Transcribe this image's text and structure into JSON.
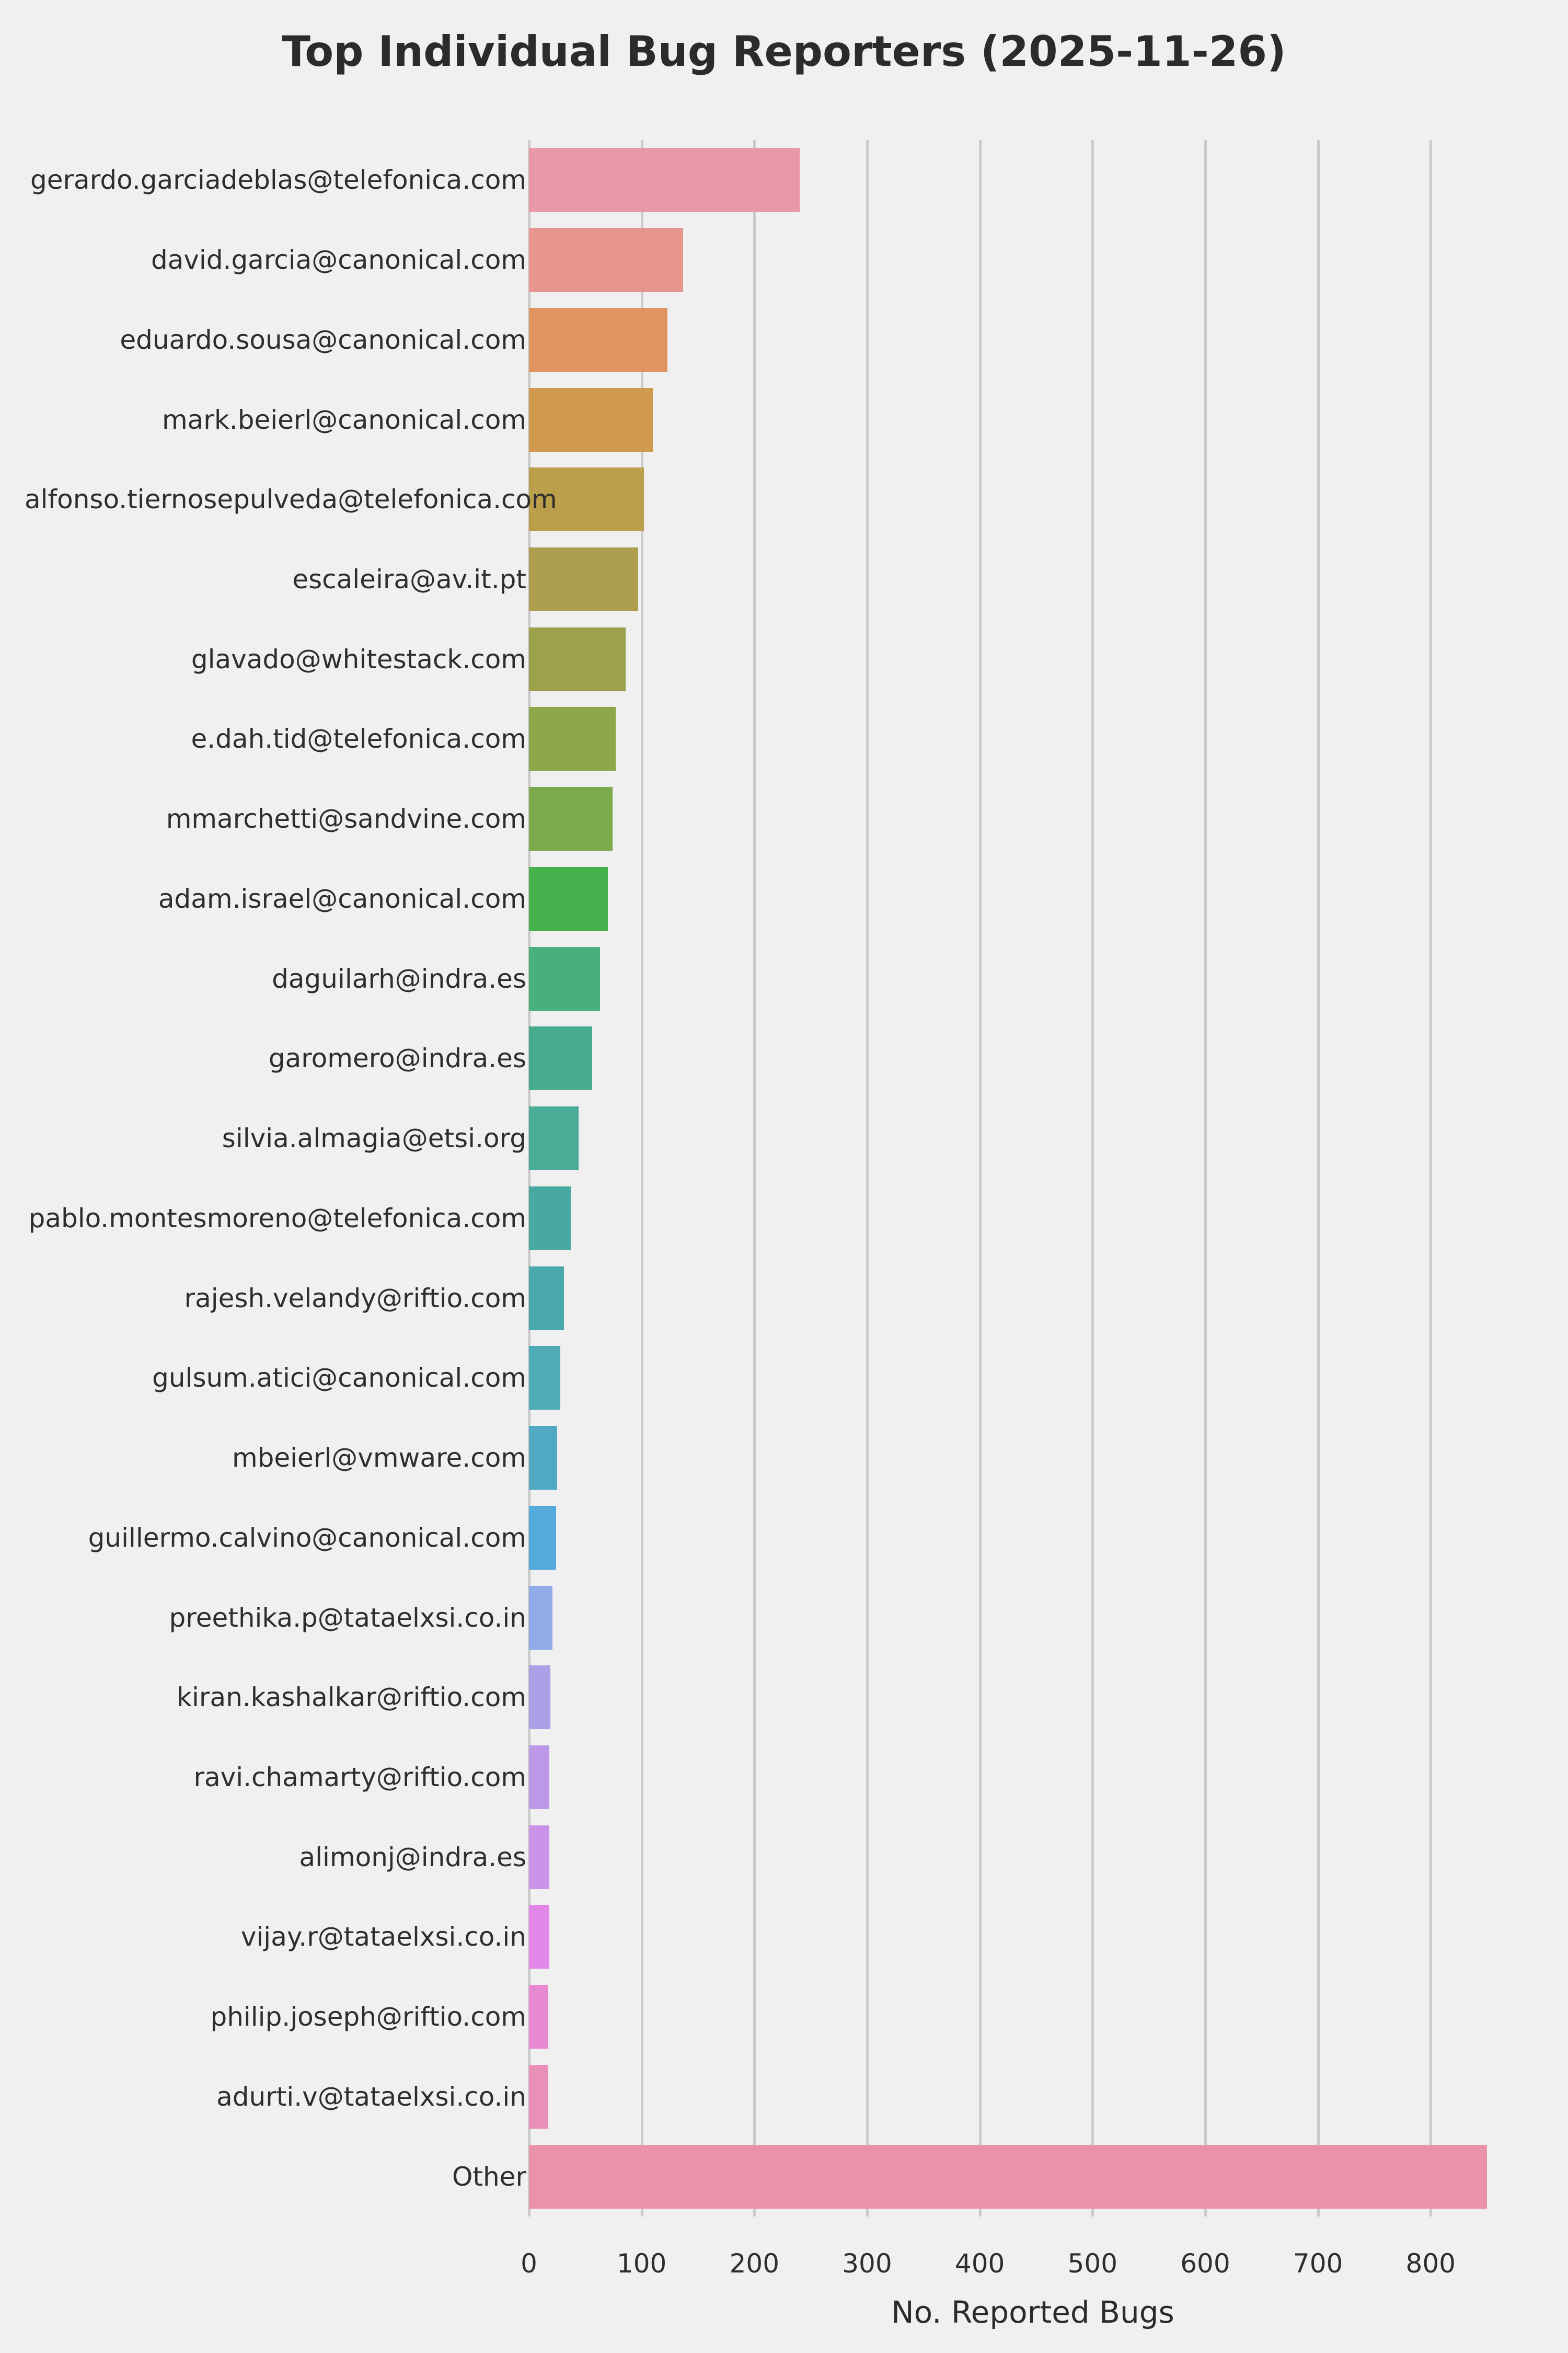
{
  "title": "Top Individual Bug Reporters (2025-11-26)",
  "colors": {
    "background": "#f0f0f0",
    "grid": "#cbcbcb",
    "text": "#2b2b2b"
  },
  "chart_data": {
    "type": "bar",
    "orientation": "horizontal",
    "title": "Top Individual Bug Reporters (2025-11-26)",
    "xlabel": "No. Reported Bugs",
    "ylabel": "",
    "grid": true,
    "legend": false,
    "xlim": [
      0,
      894
    ],
    "x_ticks": [
      0,
      100,
      200,
      300,
      400,
      500,
      600,
      700,
      800
    ],
    "categories": [
      "gerardo.garciadeblas@telefonica.com",
      "david.garcia@canonical.com",
      "eduardo.sousa@canonical.com",
      "mark.beierl@canonical.com",
      "alfonso.tiernosepulveda@telefonica.com",
      "escaleira@av.it.pt",
      "glavado@whitestack.com",
      "e.dah.tid@telefonica.com",
      "mmarchetti@sandvine.com",
      "adam.israel@canonical.com",
      "daguilarh@indra.es",
      "garomero@indra.es",
      "silvia.almagia@etsi.org",
      "pablo.montesmoreno@telefonica.com",
      "rajesh.velandy@riftio.com",
      "gulsum.atici@canonical.com",
      "mbeierl@vmware.com",
      "guillermo.calvino@canonical.com",
      "preethika.p@tataelxsi.co.in",
      "kiran.kashalkar@riftio.com",
      "ravi.chamarty@riftio.com",
      "alimonj@indra.es",
      "vijay.r@tataelxsi.co.in",
      "philip.joseph@riftio.com",
      "adurti.v@tataelxsi.co.in",
      "Other"
    ],
    "values": [
      240,
      137,
      123,
      110,
      102,
      97,
      86,
      77,
      74,
      70,
      63,
      56,
      44,
      37,
      31,
      28,
      25,
      24,
      21,
      19,
      18,
      18,
      18,
      17,
      17,
      850
    ],
    "bar_colors": [
      "#e898a6",
      "#e6968c",
      "#e09560",
      "#cf9a4e",
      "#bb9f4a",
      "#ac9e4c",
      "#9ca24a",
      "#8da84a",
      "#7aaa4c",
      "#45b04c",
      "#49af7c",
      "#49ab8e",
      "#4aab97",
      "#49a9a2",
      "#49a8ab",
      "#4fabb8",
      "#52a9c4",
      "#55aadd",
      "#90ace8",
      "#aba0e6",
      "#bb98e8",
      "#ca93e8",
      "#e287e8",
      "#e88ad2",
      "#e890b8",
      "#ea91ab"
    ]
  }
}
